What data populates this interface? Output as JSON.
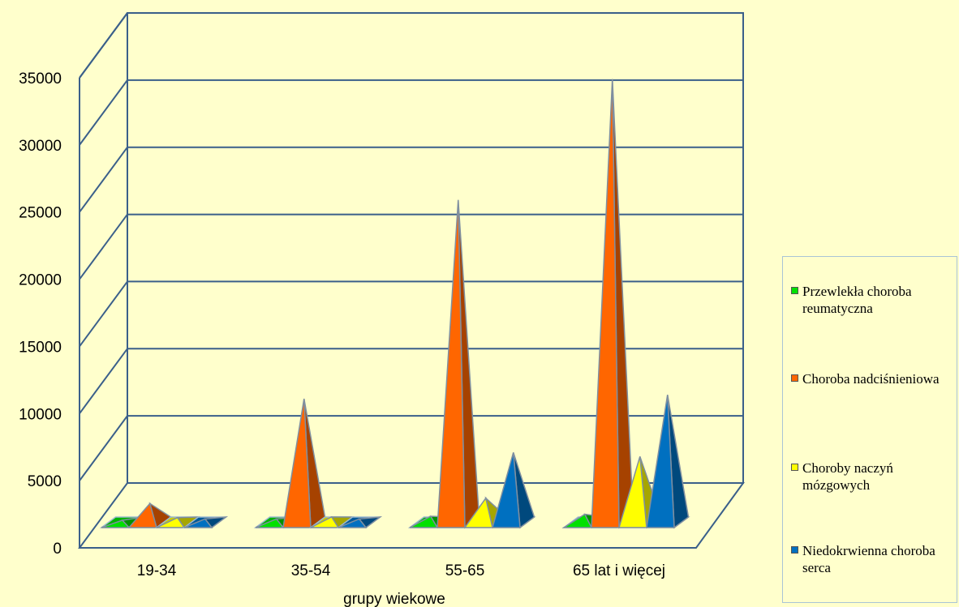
{
  "chart_data": {
    "type": "bar",
    "subtype": "3d-pyramid",
    "title": "",
    "xlabel": "grupy wiekowe",
    "ylabel": "",
    "ylim": [
      0,
      35000
    ],
    "yticks": [
      0,
      5000,
      10000,
      15000,
      20000,
      25000,
      30000,
      35000
    ],
    "categories": [
      "19-34",
      "35-54",
      "55-65",
      "65 lat i więcej"
    ],
    "series": [
      {
        "name": "Przewlekła choroba reumatyczna",
        "color": "#00E000",
        "values": [
          150,
          250,
          450,
          600
        ]
      },
      {
        "name": "Choroba nadciśnieniowa",
        "color": "#FF6600",
        "values": [
          1400,
          9200,
          24000,
          33000
        ]
      },
      {
        "name": "Choroby naczyń mózgowych",
        "color": "#FFFF00",
        "values": [
          350,
          400,
          1800,
          4900
        ]
      },
      {
        "name": "Niedokrwienna choroba serca",
        "color": "#0070C0",
        "values": [
          250,
          250,
          5200,
          9500
        ]
      }
    ],
    "grid": true,
    "legend": "right"
  }
}
